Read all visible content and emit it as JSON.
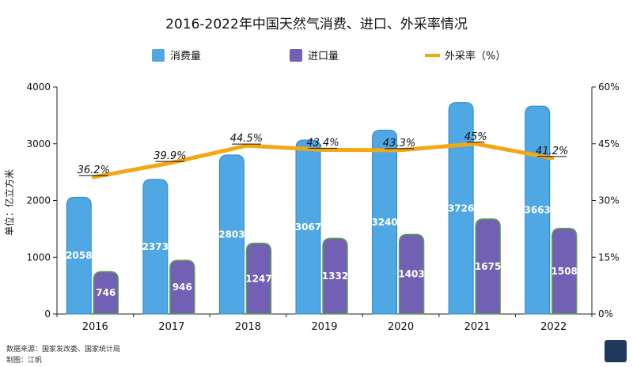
{
  "chart_data": {
    "type": "bar",
    "title": "2016-2022年中国天然气消费、进口、外采率情况",
    "ylabel": "单位：亿立方米",
    "categories": [
      "2016",
      "2017",
      "2018",
      "2019",
      "2020",
      "2021",
      "2022"
    ],
    "ylim": [
      0,
      4000
    ],
    "y_ticks": [
      "0",
      "1000",
      "2000",
      "3000",
      "4000"
    ],
    "y2lim": [
      0,
      60
    ],
    "y2_ticks": [
      "0%",
      "15%",
      "30%",
      "45%",
      "60%"
    ],
    "legend_position": "top",
    "series": [
      {
        "name": "消费量",
        "kind": "bar",
        "color": "#4fa8e4",
        "values": [
          2058,
          2373,
          2803,
          3067,
          3240,
          3726,
          3663
        ],
        "labels": [
          "2058",
          "2373",
          "2803",
          "3067",
          "3240",
          "3726",
          "3663"
        ]
      },
      {
        "name": "进口量",
        "kind": "bar",
        "color": "#7160b3",
        "values": [
          746,
          946,
          1247,
          1332,
          1403,
          1675,
          1508
        ],
        "labels": [
          "746",
          "946",
          "1247",
          "1332",
          "1403",
          "1675",
          "1508"
        ]
      },
      {
        "name": "外采率（%）",
        "kind": "line",
        "axis": "right",
        "color": "#f3a712",
        "values": [
          36.2,
          39.9,
          44.5,
          43.4,
          43.3,
          45,
          41.2
        ],
        "labels": [
          "36.2%",
          "39.9%",
          "44.5%",
          "43.4%",
          "43.3%",
          "45%",
          "41.2%"
        ]
      }
    ]
  },
  "footer": {
    "source": "数据来源：国家发改委、国家统计局",
    "author": "制图：江帆"
  }
}
